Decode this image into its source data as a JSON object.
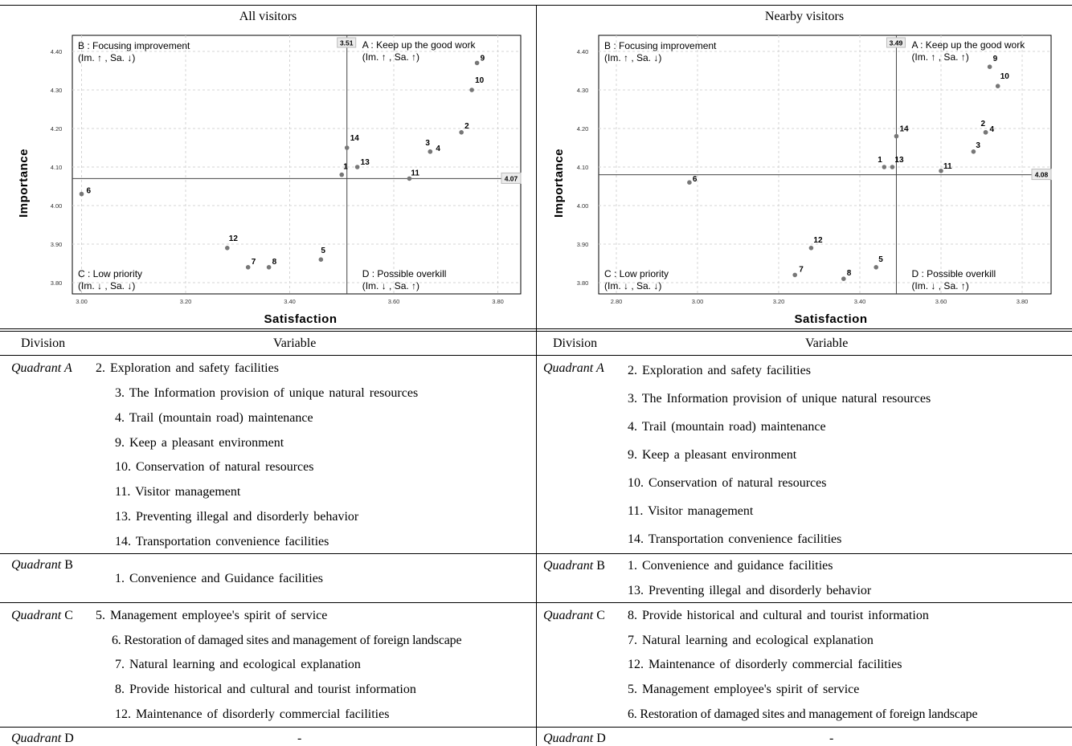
{
  "charts_area": {
    "left_title": "All visitors",
    "right_title": "Nearby visitors"
  },
  "chart_data": [
    {
      "type": "scatter",
      "title": "All visitors",
      "xlabel": "Satisfaction",
      "ylabel": "Importance",
      "xlim": [
        2.98,
        3.86
      ],
      "ylim": [
        3.785,
        4.415
      ],
      "xticks": [
        "3.00",
        "3.20",
        "3.40",
        "3.60",
        "3.80"
      ],
      "yticks": [
        "3.80",
        "3.90",
        "4.00",
        "4.10",
        "4.20",
        "4.30",
        "4.40"
      ],
      "grid": true,
      "mean_x": 3.51,
      "mean_x_label": "3.51",
      "mean_y": 4.07,
      "mean_y_label": "4.07",
      "quadrant_labels": {
        "B": [
          "B : Focusing improvement",
          "(Im. ↑ , Sa. ↓)"
        ],
        "A": [
          "A : Keep up the good work",
          "(Im. ↑ , Sa. ↑)"
        ],
        "C": [
          "C : Low priority",
          "(Im. ↓ , Sa. ↓)"
        ],
        "D": [
          "D : Possible overkill",
          "(Im. ↓ , Sa. ↑)"
        ]
      },
      "points": [
        {
          "label": "1",
          "x": 3.5,
          "y": 4.08
        },
        {
          "label": "2",
          "x": 3.73,
          "y": 4.19
        },
        {
          "label": "3",
          "x": 3.67,
          "y": 4.14
        },
        {
          "label": "4",
          "x": 3.67,
          "y": 4.14
        },
        {
          "label": "5",
          "x": 3.46,
          "y": 3.86
        },
        {
          "label": "6",
          "x": 3.0,
          "y": 4.03
        },
        {
          "label": "7",
          "x": 3.32,
          "y": 3.84
        },
        {
          "label": "8",
          "x": 3.36,
          "y": 3.84
        },
        {
          "label": "9",
          "x": 3.76,
          "y": 4.37
        },
        {
          "label": "10",
          "x": 3.75,
          "y": 4.3
        },
        {
          "label": "11",
          "x": 3.63,
          "y": 4.07
        },
        {
          "label": "12",
          "x": 3.28,
          "y": 3.89
        },
        {
          "label": "13",
          "x": 3.53,
          "y": 4.1
        },
        {
          "label": "14",
          "x": 3.51,
          "y": 4.15
        }
      ]
    },
    {
      "type": "scatter",
      "title": "Nearby visitors",
      "xlabel": "Satisfaction",
      "ylabel": "Importance",
      "xlim": [
        2.78,
        3.86
      ],
      "ylim": [
        3.785,
        4.415
      ],
      "xticks": [
        "2.80",
        "3.00",
        "3.20",
        "3.40",
        "3.60",
        "3.80"
      ],
      "yticks": [
        "3.80",
        "3.90",
        "4.00",
        "4.10",
        "4.20",
        "4.30",
        "4.40"
      ],
      "grid": true,
      "mean_x": 3.49,
      "mean_x_label": "3.49",
      "mean_y": 4.08,
      "mean_y_label": "4.08",
      "quadrant_labels": {
        "B": [
          "B : Focusing improvement",
          "(Im. ↑ , Sa. ↓)"
        ],
        "A": [
          "A : Keep up the good work",
          "(Im. ↑ , Sa. ↑)"
        ],
        "C": [
          "C : Low priority",
          "(Im. ↓ , Sa. ↓)"
        ],
        "D": [
          "D : Possible overkill",
          "(Im. ↓ , Sa. ↑)"
        ]
      },
      "points": [
        {
          "label": "1",
          "x": 3.46,
          "y": 4.1
        },
        {
          "label": "2",
          "x": 3.71,
          "y": 4.19
        },
        {
          "label": "3",
          "x": 3.68,
          "y": 4.14
        },
        {
          "label": "4",
          "x": 3.71,
          "y": 4.19
        },
        {
          "label": "5",
          "x": 3.44,
          "y": 3.84
        },
        {
          "label": "6",
          "x": 2.98,
          "y": 4.06
        },
        {
          "label": "7",
          "x": 3.24,
          "y": 3.82
        },
        {
          "label": "8",
          "x": 3.36,
          "y": 3.81
        },
        {
          "label": "9",
          "x": 3.72,
          "y": 4.36
        },
        {
          "label": "10",
          "x": 3.74,
          "y": 4.31
        },
        {
          "label": "11",
          "x": 3.6,
          "y": 4.09
        },
        {
          "label": "12",
          "x": 3.28,
          "y": 3.89
        },
        {
          "label": "13",
          "x": 3.48,
          "y": 4.1
        },
        {
          "label": "14",
          "x": 3.49,
          "y": 4.18
        }
      ]
    }
  ],
  "table": {
    "col_division": "Division",
    "col_variable": "Variable",
    "left": {
      "quadrant_a": {
        "label": "Quadrant A",
        "suffix": "",
        "items": [
          "2. Exploration and safety facilities",
          "3. The Information provision of unique natural resources",
          "4. Trail (mountain road) maintenance",
          "9. Keep a pleasant environment",
          "10. Conservation of natural resources",
          "11. Visitor management",
          "13. Preventing illegal and disorderly behavior",
          "14. Transportation convenience facilities"
        ]
      },
      "quadrant_b": {
        "label": "Quadrant",
        "suffix": " B",
        "items": [
          "1. Convenience and Guidance facilities"
        ]
      },
      "quadrant_c": {
        "label": "Quadrant",
        "suffix": " C",
        "items": [
          "5. Management employee's spirit of service",
          "6. Restoration of damaged sites and management of foreign landscape",
          "7. Natural learning and ecological explanation",
          "8. Provide historical and cultural and tourist information",
          "12. Maintenance of disorderly commercial facilities"
        ]
      },
      "quadrant_d": {
        "label": "Quadrant",
        "suffix": " D",
        "value": "-"
      }
    },
    "right": {
      "quadrant_a": {
        "label": "Quadrant A",
        "suffix": "",
        "items": [
          "2. Exploration and safety facilities",
          "3. The Information provision of unique natural resources",
          "4. Trail (mountain road) maintenance",
          "9. Keep a pleasant environment",
          "10. Conservation of natural resources",
          "11. Visitor management",
          "14. Transportation convenience facilities"
        ]
      },
      "quadrant_b": {
        "label": "Quadrant",
        "suffix": " B",
        "items": [
          "1. Convenience and guidance facilities",
          "13. Preventing illegal and disorderly behavior"
        ]
      },
      "quadrant_c": {
        "label": "Quadrant",
        "suffix": " C",
        "items": [
          "8. Provide historical and cultural and tourist information",
          "7. Natural learning and ecological explanation",
          "12. Maintenance of disorderly commercial facilities",
          "5. Management employee's spirit of service",
          "6. Restoration of damaged sites and management of foreign landscape"
        ]
      },
      "quadrant_d": {
        "label": "Quadrant",
        "suffix": " D",
        "value": "-"
      }
    }
  }
}
